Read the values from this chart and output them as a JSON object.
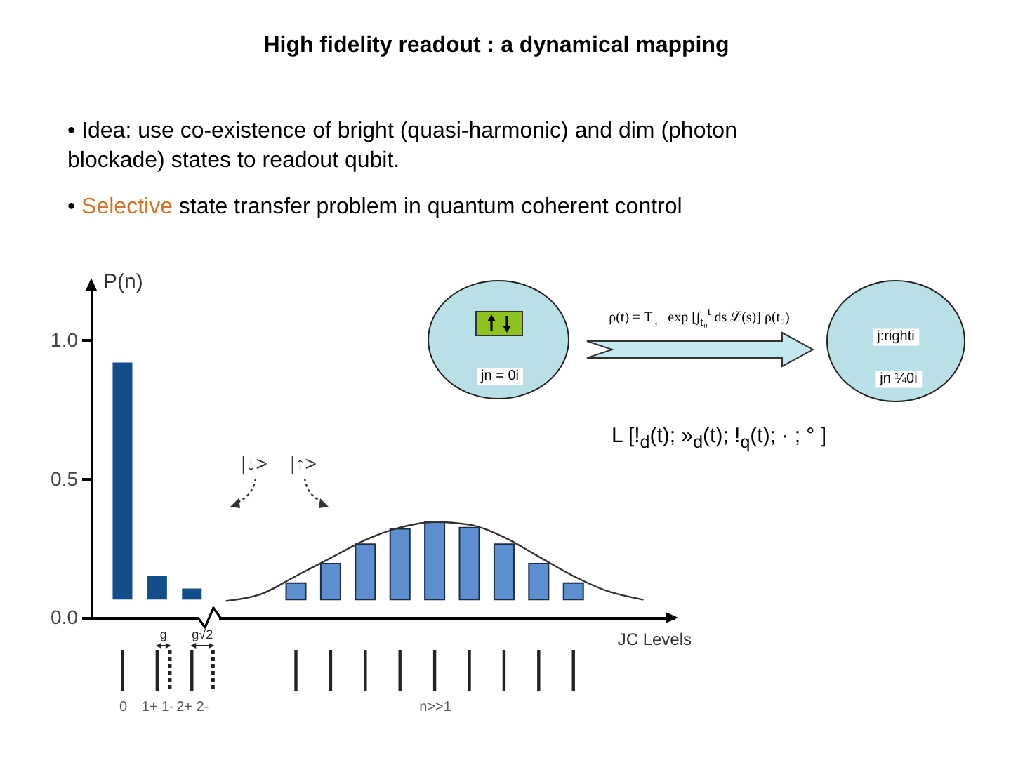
{
  "chart_data": [
    {
      "type": "bar",
      "title": "High fidelity readout : a dynamical mapping",
      "annotations": [
        "• Idea: use co-existence of bright (quasi-harmonic) and dim (photon blockade) states to readout qubit.",
        "• Selective state transfer problem in quantum coherent control",
        "|↓>",
        "|↑>",
        "g",
        "g√2"
      ],
      "categories": [
        "0",
        "1+ 1-",
        "2+ 2-",
        null,
        null,
        null,
        null,
        null,
        null,
        "n>>1",
        null,
        null,
        null,
        null,
        null,
        null
      ],
      "series": [
        {
          "type": "bar",
          "color": "#134d8b",
          "values": [
            0.855,
            0.085,
            0.04,
            null,
            null,
            null,
            null,
            null,
            null,
            null,
            null,
            null,
            null,
            null,
            null,
            null
          ],
          "base": [
            0.065,
            0.065,
            0.065,
            null,
            null,
            null,
            null,
            null,
            null,
            null,
            null,
            null,
            null,
            null,
            null,
            null
          ]
        },
        {
          "type": "bar",
          "color": "#5d8fd0",
          "values": [
            null,
            null,
            null,
            null,
            null,
            0.06,
            0.13,
            0.2,
            0.255,
            0.28,
            0.26,
            0.2,
            0.13,
            0.06,
            null,
            null
          ],
          "base": [
            null,
            null,
            null,
            null,
            null,
            0.065,
            0.065,
            0.065,
            0.065,
            0.065,
            0.065,
            0.065,
            0.065,
            0.065,
            null,
            null
          ]
        },
        {
          "type": "line",
          "color": "#333333",
          "values": [
            null,
            null,
            null,
            0.06,
            0.085,
            0.15,
            0.215,
            0.28,
            0.325,
            0.345,
            0.335,
            0.29,
            0.22,
            0.15,
            0.095,
            0.065
          ]
        }
      ],
      "xlabel": "JC Levels",
      "ylabel": "P(n)",
      "ylim": [
        0,
        1.2
      ],
      "yticks": [
        {
          "value": 0,
          "label": "0.0"
        },
        {
          "value": 0.5,
          "label": "0.5"
        },
        {
          "value": 1,
          "label": "1.0"
        }
      ]
    },
    {
      "type": "other",
      "annotations": [
        "ρ(t) = T$_{←}$ exp [∫$_{t₀}$$^{t}$ ds ℒ(s)] ρ(t₀)",
        "jn = 0i",
        "j:righti",
        "jn ¼0i",
        "L [!$_{d}$(t); »$_{d}$(t); !$_{q}$(t); · ; ° ]"
      ]
    }
  ]
}
